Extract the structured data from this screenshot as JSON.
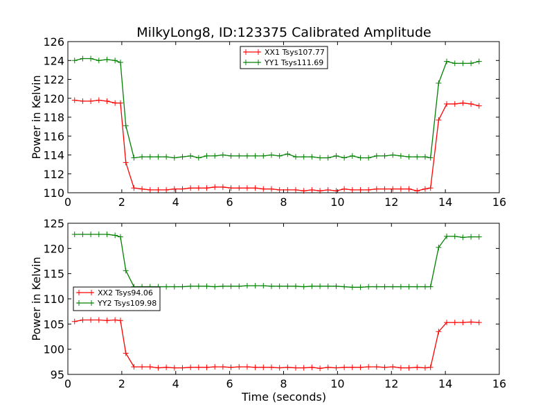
{
  "chart_data": [
    {
      "type": "line",
      "title": "MilkyLong8, ID:123375 Calibrated Amplitude",
      "xlabel": "",
      "ylabel": "Power in Kelvin",
      "xlim": [
        0,
        16
      ],
      "ylim": [
        110,
        126
      ],
      "xticks": [
        "0",
        "2",
        "4",
        "6",
        "8",
        "10",
        "12",
        "14",
        "16"
      ],
      "yticks": [
        "110",
        "112",
        "114",
        "116",
        "118",
        "120",
        "122",
        "124",
        "126"
      ],
      "legend_position": "top-center",
      "x": [
        0.25,
        0.55,
        0.85,
        1.15,
        1.45,
        1.75,
        1.95,
        2.15,
        2.45,
        2.75,
        3.05,
        3.35,
        3.65,
        3.95,
        4.25,
        4.55,
        4.85,
        5.15,
        5.45,
        5.75,
        6.05,
        6.35,
        6.65,
        6.95,
        7.25,
        7.55,
        7.85,
        8.15,
        8.45,
        8.75,
        9.05,
        9.35,
        9.65,
        9.95,
        10.25,
        10.55,
        10.85,
        11.15,
        11.45,
        11.75,
        12.05,
        12.35,
        12.65,
        12.95,
        13.25,
        13.45,
        13.75,
        14.05,
        14.35,
        14.65,
        14.95,
        15.25
      ],
      "series": [
        {
          "name": "XX1 Tsys107.77",
          "color": "#ff0000",
          "values": [
            119.8,
            119.7,
            119.7,
            119.8,
            119.7,
            119.5,
            119.5,
            113.2,
            110.5,
            110.4,
            110.3,
            110.3,
            110.3,
            110.4,
            110.4,
            110.5,
            110.5,
            110.5,
            110.6,
            110.6,
            110.5,
            110.5,
            110.5,
            110.5,
            110.4,
            110.4,
            110.3,
            110.3,
            110.3,
            110.2,
            110.3,
            110.2,
            110.3,
            110.2,
            110.4,
            110.3,
            110.3,
            110.3,
            110.4,
            110.4,
            110.4,
            110.4,
            110.4,
            110.2,
            110.4,
            110.5,
            117.7,
            119.4,
            119.4,
            119.5,
            119.4,
            119.2
          ]
        },
        {
          "name": "YY1 Tsys111.69",
          "color": "#008000",
          "values": [
            124.0,
            124.2,
            124.2,
            124.0,
            124.1,
            124.0,
            123.8,
            117.1,
            113.7,
            113.8,
            113.8,
            113.8,
            113.8,
            113.7,
            113.8,
            113.9,
            113.7,
            113.9,
            113.9,
            114.0,
            113.9,
            113.9,
            113.9,
            113.9,
            113.9,
            114.0,
            113.9,
            114.1,
            113.8,
            113.8,
            113.8,
            113.7,
            113.7,
            113.9,
            113.7,
            113.9,
            113.7,
            113.7,
            113.9,
            113.9,
            114.0,
            113.9,
            113.8,
            113.8,
            113.8,
            113.7,
            121.6,
            123.9,
            123.7,
            123.7,
            123.7,
            123.9
          ]
        }
      ]
    },
    {
      "type": "line",
      "title": "",
      "xlabel": "Time (seconds)",
      "ylabel": "Power in Kelvin",
      "xlim": [
        0,
        16
      ],
      "ylim": [
        95,
        125
      ],
      "xticks": [
        "0",
        "2",
        "4",
        "6",
        "8",
        "10",
        "12",
        "14",
        "16"
      ],
      "yticks": [
        "95",
        "100",
        "105",
        "110",
        "115",
        "120",
        "125"
      ],
      "legend_position": "center-left",
      "x": [
        0.25,
        0.55,
        0.85,
        1.15,
        1.45,
        1.75,
        1.95,
        2.15,
        2.45,
        2.75,
        3.05,
        3.35,
        3.65,
        3.95,
        4.25,
        4.55,
        4.85,
        5.15,
        5.45,
        5.75,
        6.05,
        6.35,
        6.65,
        6.95,
        7.25,
        7.55,
        7.85,
        8.15,
        8.45,
        8.75,
        9.05,
        9.35,
        9.65,
        9.95,
        10.25,
        10.55,
        10.85,
        11.15,
        11.45,
        11.75,
        12.05,
        12.35,
        12.65,
        12.95,
        13.25,
        13.45,
        13.75,
        14.05,
        14.35,
        14.65,
        14.95,
        15.25
      ],
      "series": [
        {
          "name": "XX2 Tsys94.06",
          "color": "#ff0000",
          "values": [
            105.5,
            105.8,
            105.8,
            105.8,
            105.7,
            105.8,
            105.7,
            99.2,
            96.5,
            96.5,
            96.5,
            96.3,
            96.4,
            96.3,
            96.3,
            96.4,
            96.4,
            96.4,
            96.5,
            96.5,
            96.4,
            96.5,
            96.5,
            96.4,
            96.4,
            96.4,
            96.3,
            96.4,
            96.3,
            96.3,
            96.4,
            96.2,
            96.4,
            96.3,
            96.4,
            96.4,
            96.4,
            96.5,
            96.5,
            96.4,
            96.5,
            96.3,
            96.3,
            96.4,
            96.3,
            96.4,
            103.5,
            105.3,
            105.3,
            105.3,
            105.4,
            105.3
          ]
        },
        {
          "name": "YY2 Tsys109.98",
          "color": "#008000",
          "values": [
            122.8,
            122.8,
            122.8,
            122.8,
            122.8,
            122.6,
            122.3,
            115.6,
            112.4,
            112.4,
            112.4,
            112.4,
            112.4,
            112.4,
            112.4,
            112.5,
            112.5,
            112.5,
            112.4,
            112.5,
            112.5,
            112.5,
            112.6,
            112.6,
            112.6,
            112.5,
            112.5,
            112.5,
            112.5,
            112.4,
            112.5,
            112.5,
            112.5,
            112.5,
            112.4,
            112.3,
            112.3,
            112.4,
            112.4,
            112.4,
            112.4,
            112.4,
            112.4,
            112.4,
            112.4,
            112.4,
            120.2,
            122.4,
            122.4,
            122.2,
            122.3,
            122.3
          ]
        }
      ]
    }
  ]
}
